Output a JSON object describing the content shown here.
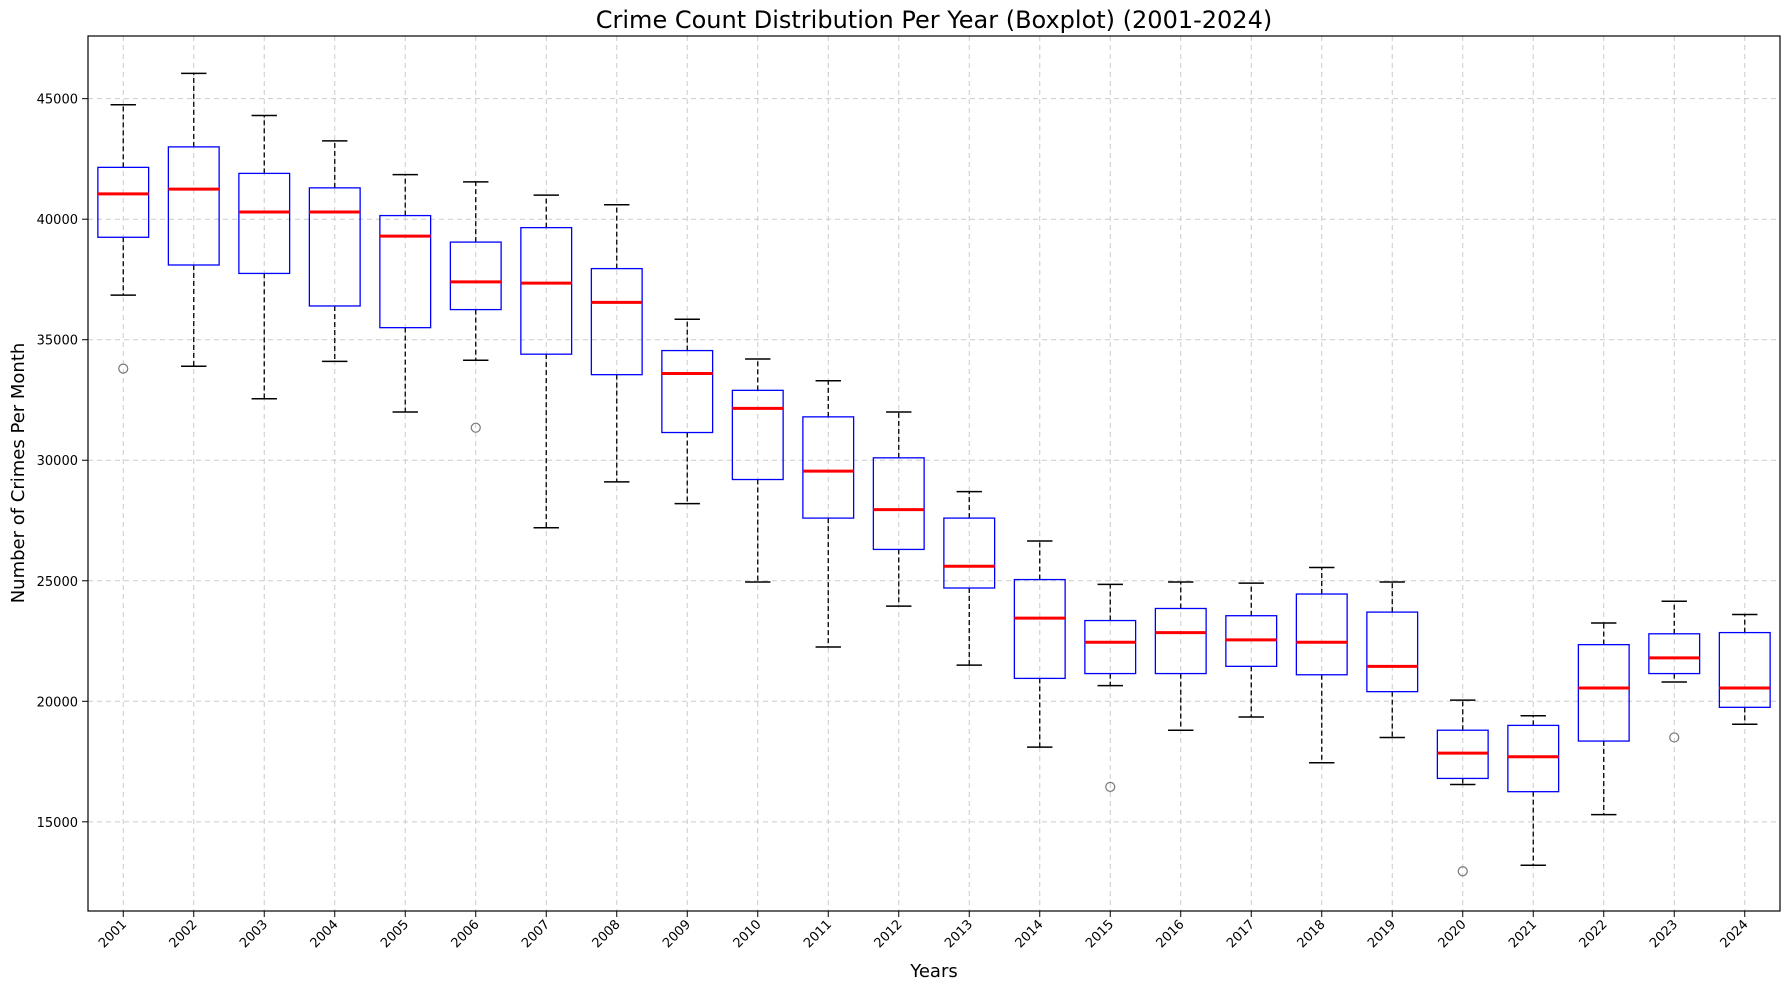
{
  "chart_data": {
    "type": "boxplot",
    "title": "Crime Count Distribution Per Year (Boxplot) (2001-2024)",
    "xlabel": "Years",
    "ylabel": "Number of Crimes Per Month",
    "ylim": [
      11300,
      47600
    ],
    "yticks": [
      15000,
      20000,
      25000,
      30000,
      35000,
      40000,
      45000
    ],
    "grid": true,
    "colors": {
      "box": "#0000ff",
      "median": "#ff0000",
      "whisker": "#000000",
      "flier": "#777777",
      "grid": "#cccccc"
    },
    "categories": [
      "2001",
      "2002",
      "2003",
      "2004",
      "2005",
      "2006",
      "2007",
      "2008",
      "2009",
      "2010",
      "2011",
      "2012",
      "2013",
      "2014",
      "2015",
      "2016",
      "2017",
      "2018",
      "2019",
      "2020",
      "2021",
      "2022",
      "2023",
      "2024"
    ],
    "boxes": [
      {
        "whislo": 36850,
        "q1": 39250,
        "med": 41050,
        "q3": 42150,
        "whishi": 44750,
        "fliers": [
          33800
        ]
      },
      {
        "whislo": 33900,
        "q1": 38100,
        "med": 41250,
        "q3": 43000,
        "whishi": 46050,
        "fliers": []
      },
      {
        "whislo": 32550,
        "q1": 37750,
        "med": 40300,
        "q3": 41900,
        "whishi": 44300,
        "fliers": []
      },
      {
        "whislo": 34100,
        "q1": 36400,
        "med": 40300,
        "q3": 41300,
        "whishi": 43250,
        "fliers": []
      },
      {
        "whislo": 32000,
        "q1": 35500,
        "med": 39300,
        "q3": 40150,
        "whishi": 41850,
        "fliers": []
      },
      {
        "whislo": 34150,
        "q1": 36250,
        "med": 37400,
        "q3": 39050,
        "whishi": 41550,
        "fliers": [
          31350
        ]
      },
      {
        "whislo": 27200,
        "q1": 34400,
        "med": 37350,
        "q3": 39650,
        "whishi": 41000,
        "fliers": []
      },
      {
        "whislo": 29100,
        "q1": 33550,
        "med": 36550,
        "q3": 37950,
        "whishi": 40600,
        "fliers": []
      },
      {
        "whislo": 28200,
        "q1": 31150,
        "med": 33600,
        "q3": 34550,
        "whishi": 35850,
        "fliers": []
      },
      {
        "whislo": 24950,
        "q1": 29200,
        "med": 32150,
        "q3": 32900,
        "whishi": 34200,
        "fliers": []
      },
      {
        "whislo": 22250,
        "q1": 27600,
        "med": 29550,
        "q3": 31800,
        "whishi": 33300,
        "fliers": []
      },
      {
        "whislo": 23950,
        "q1": 26300,
        "med": 27950,
        "q3": 30100,
        "whishi": 32000,
        "fliers": []
      },
      {
        "whislo": 21500,
        "q1": 24700,
        "med": 25600,
        "q3": 27600,
        "whishi": 28700,
        "fliers": []
      },
      {
        "whislo": 18100,
        "q1": 20950,
        "med": 23450,
        "q3": 25050,
        "whishi": 26650,
        "fliers": []
      },
      {
        "whislo": 20650,
        "q1": 21150,
        "med": 22450,
        "q3": 23350,
        "whishi": 24850,
        "fliers": [
          16450
        ]
      },
      {
        "whislo": 18800,
        "q1": 21150,
        "med": 22850,
        "q3": 23850,
        "whishi": 24950,
        "fliers": []
      },
      {
        "whislo": 19350,
        "q1": 21450,
        "med": 22550,
        "q3": 23550,
        "whishi": 24900,
        "fliers": []
      },
      {
        "whislo": 17450,
        "q1": 21100,
        "med": 22450,
        "q3": 24450,
        "whishi": 25550,
        "fliers": []
      },
      {
        "whislo": 18500,
        "q1": 20400,
        "med": 21450,
        "q3": 23700,
        "whishi": 24950,
        "fliers": []
      },
      {
        "whislo": 16550,
        "q1": 16800,
        "med": 17850,
        "q3": 18800,
        "whishi": 20050,
        "fliers": [
          12950
        ]
      },
      {
        "whislo": 13200,
        "q1": 16250,
        "med": 17700,
        "q3": 19000,
        "whishi": 19400,
        "fliers": []
      },
      {
        "whislo": 15300,
        "q1": 18350,
        "med": 20550,
        "q3": 22350,
        "whishi": 23250,
        "fliers": []
      },
      {
        "whislo": 20800,
        "q1": 21150,
        "med": 21800,
        "q3": 22800,
        "whishi": 24150,
        "fliers": [
          18500
        ]
      },
      {
        "whislo": 19050,
        "q1": 19750,
        "med": 20550,
        "q3": 22850,
        "whishi": 23600,
        "fliers": []
      }
    ]
  }
}
